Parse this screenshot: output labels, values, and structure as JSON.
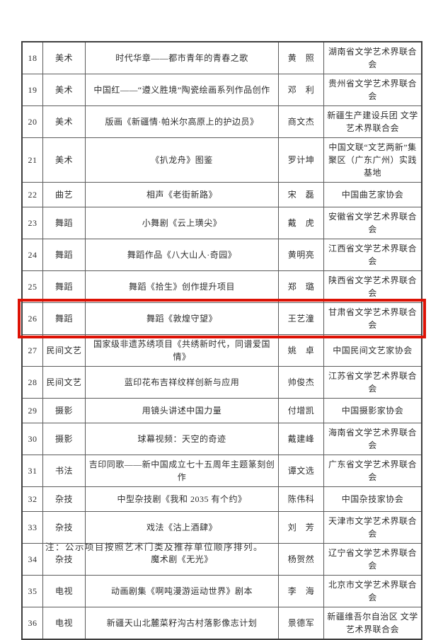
{
  "table": {
    "highlight_color": "#dd1205",
    "grid_color": "#5c5c5c",
    "highlighted_row_no": "26",
    "rows": [
      {
        "no": "18",
        "category": "美术",
        "title": "时代华章——都市青年的青春之歌",
        "name": "黄　照",
        "org": "湖南省文学艺术界联合会"
      },
      {
        "no": "19",
        "category": "美术",
        "title": "中国红——“遵义胜境”陶瓷绘画系列作品创作",
        "name": "邓　利",
        "org": "贵州省文学艺术界联合会"
      },
      {
        "no": "20",
        "category": "美术",
        "title": "版画《新疆情·帕米尔高原上的护边员》",
        "name": "商文杰",
        "org": "新疆生产建设兵团 文学艺术界联合会"
      },
      {
        "no": "21",
        "category": "美术",
        "title": "《扒龙舟》图鉴",
        "name": "罗计坤",
        "org": "中国文联“文艺两新”集聚区（广东广州）实践基地"
      },
      {
        "no": "22",
        "category": "曲艺",
        "title": "相声《老街新路》",
        "name": "宋　磊",
        "org": "中国曲艺家协会"
      },
      {
        "no": "23",
        "category": "舞蹈",
        "title": "小舞剧《云上璜尖》",
        "name": "戴　虎",
        "org": "安徽省文学艺术界联合会"
      },
      {
        "no": "24",
        "category": "舞蹈",
        "title": "舞蹈作品《八大山人·奇园》",
        "name": "黄明亮",
        "org": "江西省文学艺术界联合会"
      },
      {
        "no": "25",
        "category": "舞蹈",
        "title": "舞蹈《拾生》创作提升项目",
        "name": "郑　璐",
        "org": "陕西省文学艺术界联合会"
      },
      {
        "no": "26",
        "category": "舞蹈",
        "title": "舞蹈《敦煌守望》",
        "name": "王艺潼",
        "org": "甘肃省文学艺术界联合会"
      },
      {
        "no": "27",
        "category": "民间文艺",
        "title": "国家级非遗苏绣项目《共绣新时代，同谱爱国情》",
        "name": "姚　卓",
        "org": "中国民间文艺家协会"
      },
      {
        "no": "28",
        "category": "民间文艺",
        "title": "蓝印花布吉祥纹样创新与应用",
        "name": "帅俊杰",
        "org": "江苏省文学艺术界联合会"
      },
      {
        "no": "29",
        "category": "摄影",
        "title": "用镜头讲述中国力量",
        "name": "付增凯",
        "org": "中国摄影家协会"
      },
      {
        "no": "30",
        "category": "摄影",
        "title": "球幕视频：天空的奇迹",
        "name": "戴建峰",
        "org": "海南省文学艺术界联合会"
      },
      {
        "no": "31",
        "category": "书法",
        "title": "吉印同歌——新中国成立七十五周年主题篆刻创作",
        "name": "谭文选",
        "org": "广东省文学艺术界联合会"
      },
      {
        "no": "32",
        "category": "杂技",
        "title": "中型杂技剧《我和 2035 有个约》",
        "name": "陈伟科",
        "org": "中国杂技家协会"
      },
      {
        "no": "33",
        "category": "杂技",
        "title": "戏法《沽上酒肆》",
        "name": "刘　芳",
        "org": "天津市文学艺术界联合会"
      },
      {
        "no": "34",
        "category": "杂技",
        "title": "魔术剧《无光》",
        "name": "杨贺然",
        "org": "辽宁省文学艺术界联合会"
      },
      {
        "no": "35",
        "category": "电视",
        "title": "动画剧集《啊吨漫游运动世界》剧本",
        "name": "李　海",
        "org": "北京市文学艺术界联合会"
      },
      {
        "no": "36",
        "category": "电视",
        "title": "新疆天山北麓菜籽沟古村落影像志计划",
        "name": "景德军",
        "org": "新疆维吾尔自治区 文学艺术界联合会"
      }
    ]
  },
  "footnote": "注：公示项目按照艺术门类及推荐单位顺序排列。"
}
